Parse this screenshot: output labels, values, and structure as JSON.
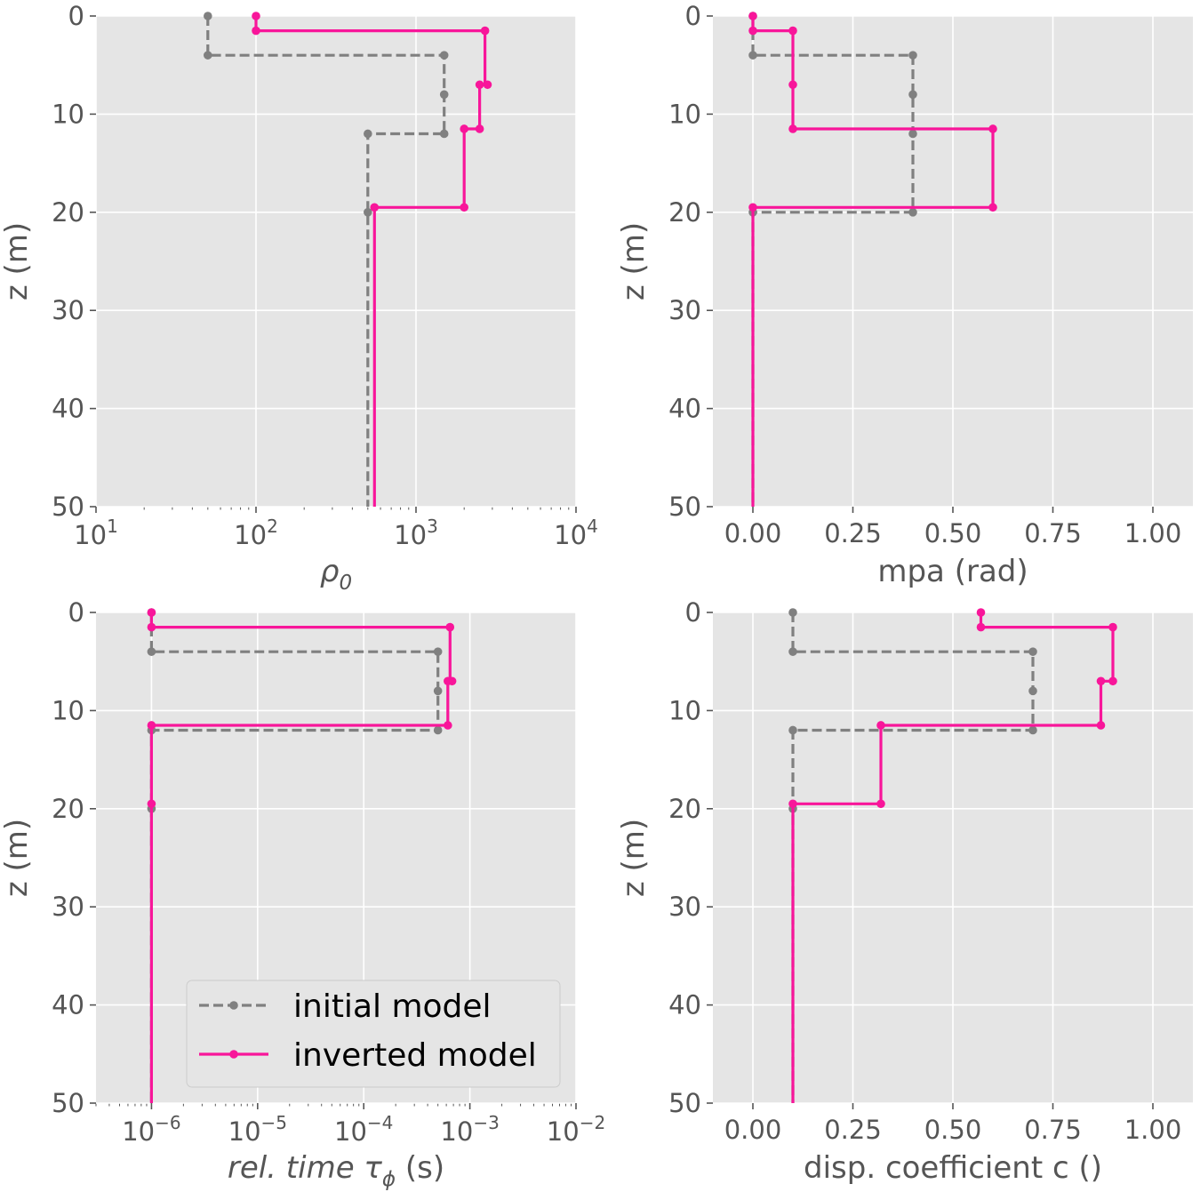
{
  "colors": {
    "panel_bg": "#e5e5e5",
    "grid": "#ffffff",
    "text": "#555555",
    "initial": "#808080",
    "inverted": "#f8169a"
  },
  "legend": {
    "entries": [
      "initial model",
      "inverted model"
    ]
  },
  "chart_data": [
    {
      "type": "line",
      "xscale": "log",
      "xlim": [
        10,
        10000
      ],
      "ylim": [
        0,
        50
      ],
      "y_inverted": true,
      "grid": true,
      "xticks": [
        {
          "base": "10",
          "exp": "1"
        },
        {
          "base": "10",
          "exp": "2"
        },
        {
          "base": "10",
          "exp": "3"
        },
        {
          "base": "10",
          "exp": "4"
        }
      ],
      "yticks": [
        "0",
        "10",
        "20",
        "30",
        "40",
        "50"
      ],
      "xlabel": {
        "main": "ρ",
        "sub": "0",
        "rest": ""
      },
      "ylabel": "z (m)",
      "series": [
        {
          "name": "initial model",
          "style": "dashed",
          "x": [
            50,
            50,
            1500,
            1500,
            1500,
            1500,
            500,
            500,
            500,
            500
          ],
          "y": [
            0,
            4,
            4,
            8,
            8,
            12,
            12,
            20,
            20,
            50
          ],
          "markers": [
            [
              50,
              0
            ],
            [
              50,
              4
            ],
            [
              1500,
              4
            ],
            [
              1500,
              8
            ],
            [
              1500,
              12
            ],
            [
              500,
              12
            ],
            [
              500,
              20
            ]
          ]
        },
        {
          "name": "inverted model",
          "style": "solid",
          "x": [
            100,
            100,
            2700,
            2700,
            2800,
            2800,
            2500,
            2500,
            2000,
            2000,
            550,
            550
          ],
          "y": [
            0,
            1.5,
            1.5,
            7,
            7,
            7,
            7,
            11.5,
            11.5,
            19.5,
            19.5,
            50
          ],
          "markers": [
            [
              100,
              0
            ],
            [
              100,
              1.5
            ],
            [
              2700,
              1.5
            ],
            [
              2800,
              7
            ],
            [
              2500,
              7
            ],
            [
              2500,
              11.5
            ],
            [
              2000,
              11.5
            ],
            [
              2000,
              19.5
            ],
            [
              550,
              19.5
            ]
          ]
        }
      ]
    },
    {
      "type": "line",
      "xscale": "linear",
      "xlim": [
        -0.1,
        1.1
      ],
      "ylim": [
        0,
        50
      ],
      "y_inverted": true,
      "grid": true,
      "xticks": [
        "0.00",
        "0.25",
        "0.50",
        "0.75",
        "1.00"
      ],
      "xtick_values": [
        0,
        0.25,
        0.5,
        0.75,
        1.0
      ],
      "yticks": [
        "0",
        "10",
        "20",
        "30",
        "40",
        "50"
      ],
      "xlabel": {
        "main": "mpa (rad)",
        "sub": "",
        "rest": ""
      },
      "ylabel": "z (m)",
      "series": [
        {
          "name": "initial model",
          "style": "dashed",
          "x": [
            0,
            0,
            0.4,
            0.4,
            0.4,
            0.4,
            0,
            0
          ],
          "y": [
            0,
            4,
            4,
            8,
            12,
            20,
            20,
            50
          ],
          "markers": [
            [
              0,
              0
            ],
            [
              0,
              4
            ],
            [
              0.4,
              4
            ],
            [
              0.4,
              8
            ],
            [
              0.4,
              12
            ],
            [
              0.4,
              20
            ],
            [
              0,
              20
            ]
          ]
        },
        {
          "name": "inverted model",
          "style": "solid",
          "x": [
            0,
            0,
            0.1,
            0.1,
            0.1,
            0.6,
            0.6,
            0,
            0
          ],
          "y": [
            0,
            1.5,
            1.5,
            7,
            11.5,
            11.5,
            19.5,
            19.5,
            50
          ],
          "markers": [
            [
              0,
              0
            ],
            [
              0,
              1.5
            ],
            [
              0.1,
              1.5
            ],
            [
              0.1,
              7
            ],
            [
              0.1,
              11.5
            ],
            [
              0.6,
              11.5
            ],
            [
              0.6,
              19.5
            ],
            [
              0,
              19.5
            ]
          ]
        }
      ]
    },
    {
      "type": "line",
      "xscale": "log",
      "xlim": [
        3e-07,
        0.01
      ],
      "ylim": [
        0,
        50
      ],
      "y_inverted": true,
      "grid": true,
      "xticks": [
        {
          "base": "10",
          "exp": "−6"
        },
        {
          "base": "10",
          "exp": "−5"
        },
        {
          "base": "10",
          "exp": "−4"
        },
        {
          "base": "10",
          "exp": "−3"
        },
        {
          "base": "10",
          "exp": "−2"
        }
      ],
      "xtick_values": [
        1e-06,
        1e-05,
        0.0001,
        0.001,
        0.01
      ],
      "yticks": [
        "0",
        "10",
        "20",
        "30",
        "40",
        "50"
      ],
      "xlabel": {
        "main": "rel. time τ",
        "sub": "ϕ",
        "rest": " (s)"
      },
      "ylabel": "z (m)",
      "series": [
        {
          "name": "initial model",
          "style": "dashed",
          "x": [
            1e-06,
            1e-06,
            0.0005,
            0.0005,
            0.0005,
            0.0005,
            1e-06,
            1e-06
          ],
          "y": [
            0,
            4,
            4,
            8,
            8,
            12,
            12,
            50
          ],
          "markers": [
            [
              1e-06,
              0
            ],
            [
              1e-06,
              4
            ],
            [
              0.0005,
              4
            ],
            [
              0.0005,
              8
            ],
            [
              0.0005,
              12
            ],
            [
              1e-06,
              12
            ],
            [
              1e-06,
              20
            ]
          ]
        },
        {
          "name": "inverted model",
          "style": "solid",
          "x": [
            1e-06,
            1e-06,
            0.00065,
            0.00065,
            0.00068,
            0.00062,
            0.00062,
            1e-06,
            1e-06
          ],
          "y": [
            0,
            1.5,
            1.5,
            7,
            7,
            7,
            11.5,
            11.5,
            50
          ],
          "markers": [
            [
              1e-06,
              0
            ],
            [
              1e-06,
              1.5
            ],
            [
              0.00065,
              1.5
            ],
            [
              0.00068,
              7
            ],
            [
              0.00062,
              7
            ],
            [
              0.00062,
              11.5
            ],
            [
              1e-06,
              11.5
            ],
            [
              1e-06,
              19.5
            ]
          ]
        }
      ],
      "legend_location": "lower-right"
    },
    {
      "type": "line",
      "xscale": "linear",
      "xlim": [
        -0.1,
        1.1
      ],
      "ylim": [
        0,
        50
      ],
      "y_inverted": true,
      "grid": true,
      "xticks": [
        "0.00",
        "0.25",
        "0.50",
        "0.75",
        "1.00"
      ],
      "xtick_values": [
        0,
        0.25,
        0.5,
        0.75,
        1.0
      ],
      "yticks": [
        "0",
        "10",
        "20",
        "30",
        "40",
        "50"
      ],
      "xlabel": {
        "main": "disp. coefficient c ()",
        "sub": "",
        "rest": ""
      },
      "ylabel": "z (m)",
      "series": [
        {
          "name": "initial model",
          "style": "dashed",
          "x": [
            0.1,
            0.1,
            0.7,
            0.7,
            0.7,
            0.1,
            0.1
          ],
          "y": [
            0,
            4,
            4,
            8,
            12,
            12,
            50
          ],
          "markers": [
            [
              0.1,
              0
            ],
            [
              0.1,
              4
            ],
            [
              0.7,
              4
            ],
            [
              0.7,
              8
            ],
            [
              0.7,
              12
            ],
            [
              0.1,
              12
            ],
            [
              0.1,
              20
            ]
          ]
        },
        {
          "name": "inverted model",
          "style": "solid",
          "x": [
            0.57,
            0.57,
            0.9,
            0.9,
            0.87,
            0.87,
            0.32,
            0.32,
            0.1,
            0.1
          ],
          "y": [
            0,
            1.5,
            1.5,
            7,
            7,
            11.5,
            11.5,
            19.5,
            19.5,
            50
          ],
          "markers": [
            [
              0.57,
              0
            ],
            [
              0.57,
              1.5
            ],
            [
              0.9,
              1.5
            ],
            [
              0.9,
              7
            ],
            [
              0.87,
              7
            ],
            [
              0.87,
              11.5
            ],
            [
              0.32,
              11.5
            ],
            [
              0.32,
              19.5
            ],
            [
              0.1,
              19.5
            ]
          ]
        }
      ]
    }
  ]
}
